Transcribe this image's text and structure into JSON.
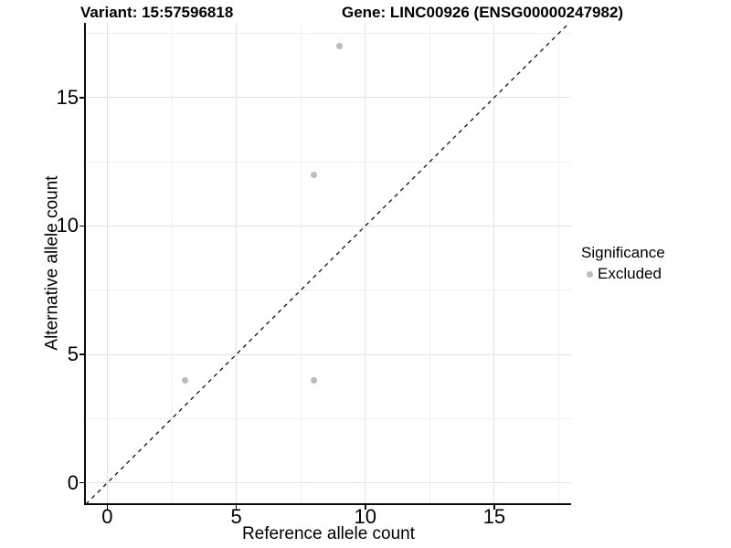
{
  "chart_data": {
    "type": "scatter",
    "titles": {
      "left": "Variant: 15:57596818",
      "right": "Gene: LINC00926 (ENSG00000247982)"
    },
    "xlabel": "Reference allele count",
    "ylabel": "Alternative allele count",
    "xlim": [
      -0.83,
      17.98
    ],
    "ylim": [
      -0.83,
      17.91
    ],
    "xticks": [
      0,
      5,
      10,
      15
    ],
    "yticks": [
      0,
      5,
      10,
      15
    ],
    "minor_ticks_x": [
      2.5,
      7.5,
      12.5,
      17.5
    ],
    "minor_ticks_y": [
      2.5,
      7.5,
      12.5,
      17.5
    ],
    "grid": "major+minor",
    "reference_line": {
      "type": "identity",
      "style": "dashed",
      "color": "#111111"
    },
    "series": [
      {
        "name": "Excluded",
        "color": "#bcbcbc",
        "points": [
          [
            9,
            17
          ],
          [
            8,
            12
          ],
          [
            3,
            4
          ],
          [
            8,
            4
          ]
        ]
      }
    ],
    "legend": {
      "title": "Significance",
      "position": "right",
      "items": [
        {
          "label": "Excluded",
          "color": "#bcbcbc",
          "marker": "circle"
        }
      ]
    }
  },
  "colors": {
    "background": "#ffffff",
    "axis": "#0a0a0a",
    "grid_major": "#e2e2e2",
    "grid_minor": "#f0f0f0",
    "point": "#bcbcbc",
    "text": "#000000"
  }
}
